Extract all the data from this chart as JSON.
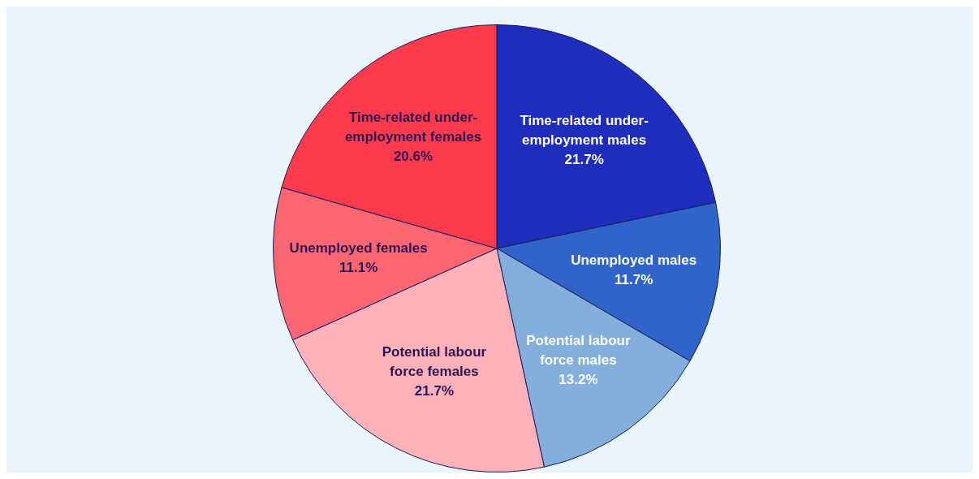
{
  "chart_data": {
    "type": "pie",
    "categories": [
      "Time-related under-employment males",
      "Unemployed males",
      "Potential labour force males",
      "Potential labour force females",
      "Unemployed females",
      "Time-related under-employment females"
    ],
    "values": [
      21.7,
      11.7,
      13.2,
      21.7,
      11.1,
      20.6
    ],
    "colors": [
      "#1f2dbd",
      "#3064c8",
      "#84aedb",
      "#fdb1b8",
      "#fc6672",
      "#fe3b4c"
    ],
    "value_labels": [
      "21.7%",
      "11.7%",
      "13.2%",
      "21.7%",
      "11.1%",
      "20.6%"
    ],
    "legend": false
  }
}
